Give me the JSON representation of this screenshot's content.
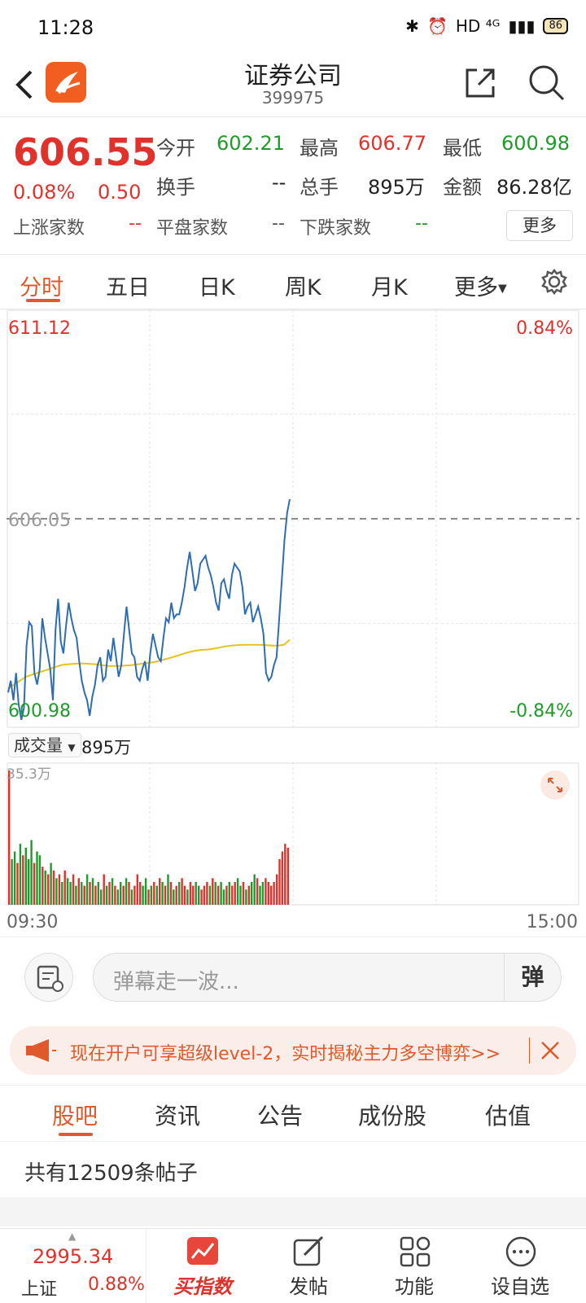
{
  "status": {
    "time": "11:28",
    "network": "HD ⁴ᴳ",
    "battery": "86"
  },
  "header": {
    "title": "证券公司",
    "code": "399975"
  },
  "quote": {
    "price": "606.55",
    "change_pct": "0.08%",
    "change": "0.50",
    "open_label": "今开",
    "open": "602.21",
    "high_label": "最高",
    "high": "606.77",
    "low_label": "最低",
    "low": "600.98",
    "turnover_label": "换手",
    "turnover": "--",
    "volume_label": "总手",
    "volume": "895万",
    "amount_label": "金额",
    "amount": "86.28亿",
    "up_label": "上涨家数",
    "up": "--",
    "flat_label": "平盘家数",
    "flat": "--",
    "down_label": "下跌家数",
    "down": "--",
    "more": "更多"
  },
  "chart_tabs": [
    "分时",
    "五日",
    "日K",
    "周K",
    "月K",
    "更多"
  ],
  "chart_data": {
    "type": "line",
    "y_max": "611.12",
    "y_max_pct": "0.84%",
    "y_min": "600.98",
    "y_min_pct": "-0.84%",
    "prev_close": "606.05",
    "ylim": [
      600.98,
      611.12
    ],
    "x_start": "09:30",
    "x_end": "15:00",
    "price": [
      601.6,
      601.9,
      601.4,
      602.1,
      601.3,
      600.9,
      601.2,
      602.8,
      603.4,
      603.3,
      602.1,
      601.8,
      602.2,
      603.5,
      603.0,
      602.6,
      602.2,
      601.4,
      603.2,
      604.0,
      602.9,
      602.6,
      603.3,
      603.9,
      603.5,
      603.2,
      603.0,
      602.4,
      601.9,
      601.6,
      601.4,
      601.0,
      601.5,
      601.8,
      602.3,
      602.5,
      601.9,
      602.0,
      602.7,
      602.4,
      603.0,
      602.5,
      602.0,
      602.3,
      603.1,
      603.8,
      603.2,
      602.6,
      602.5,
      602.0,
      601.9,
      602.2,
      602.4,
      601.9,
      602.6,
      603.1,
      602.8,
      602.5,
      602.4,
      603.0,
      603.5,
      603.4,
      603.9,
      603.5,
      603.6,
      603.6,
      603.9,
      604.3,
      604.8,
      605.2,
      604.7,
      604.2,
      604.4,
      604.9,
      605.0,
      605.1,
      604.8,
      604.6,
      604.3,
      603.9,
      603.7,
      604.4,
      604.5,
      604.2,
      604.0,
      604.6,
      604.9,
      604.8,
      604.7,
      604.3,
      603.6,
      603.8,
      603.9,
      603.4,
      603.6,
      603.8,
      603.5,
      603.1,
      602.1,
      601.9,
      602.0,
      602.3,
      602.5,
      603.5,
      604.5,
      605.5,
      606.2,
      606.55
    ],
    "avg": [
      601.7,
      601.8,
      601.9,
      602.0,
      602.05,
      602.1,
      602.15,
      602.2,
      602.25,
      602.3,
      602.32,
      602.33,
      602.34,
      602.34,
      602.33,
      602.32,
      602.3,
      602.28,
      602.28,
      602.28,
      602.29,
      602.3,
      602.32,
      602.34,
      602.36,
      602.38,
      602.42,
      602.46,
      602.5,
      602.55,
      602.6,
      602.64,
      602.67,
      602.69,
      602.7,
      602.72,
      602.75,
      602.78,
      602.8,
      602.81,
      602.82,
      602.82,
      602.82,
      602.82,
      602.81,
      602.8,
      602.8,
      602.82,
      602.95
    ],
    "volume_max_label": "35.3万",
    "volume": [
      35.3,
      12,
      14,
      11,
      16,
      13,
      15,
      12,
      17,
      11,
      14,
      13,
      10,
      9,
      8,
      11,
      9,
      7,
      8,
      6,
      9,
      7,
      6,
      8,
      5,
      7,
      6,
      5,
      8,
      6,
      7,
      5,
      6,
      4,
      8,
      5,
      6,
      7,
      5,
      4,
      6,
      5,
      7,
      6,
      4,
      5,
      8,
      6,
      5,
      7,
      4,
      5,
      6,
      5,
      7,
      6,
      5,
      8,
      6,
      4,
      5,
      6,
      7,
      5,
      4,
      6,
      5,
      6,
      5,
      4,
      5,
      6,
      5,
      7,
      6,
      5,
      6,
      4,
      5,
      6,
      5,
      6,
      7,
      5,
      6,
      4,
      5,
      6,
      8,
      7,
      5,
      6,
      7,
      6,
      5,
      6,
      8,
      12,
      14,
      16,
      15
    ],
    "volume_colors": [
      "r",
      "g",
      "g",
      "r",
      "g",
      "r",
      "g",
      "g",
      "g",
      "r",
      "g",
      "g",
      "r",
      "g",
      "r",
      "g",
      "r",
      "g",
      "r",
      "g",
      "r",
      "g",
      "g",
      "r",
      "g",
      "r",
      "g",
      "r",
      "g",
      "r",
      "g",
      "r",
      "g",
      "g",
      "r",
      "g",
      "r",
      "g",
      "r",
      "g",
      "g",
      "r",
      "g",
      "r",
      "g",
      "r",
      "r",
      "r",
      "g",
      "g",
      "r",
      "g",
      "r",
      "g",
      "r",
      "g",
      "r",
      "g",
      "r",
      "g",
      "r",
      "g",
      "r",
      "r",
      "g",
      "r",
      "r",
      "g",
      "g",
      "r",
      "r",
      "r",
      "g",
      "r",
      "g",
      "r",
      "g",
      "g",
      "r",
      "g",
      "r",
      "r",
      "g",
      "g",
      "r",
      "g",
      "r",
      "g",
      "g",
      "r",
      "g",
      "g",
      "r",
      "r",
      "r",
      "r",
      "r",
      "r",
      "r",
      "r",
      "r"
    ]
  },
  "volume_indicator": {
    "label": "成交量",
    "value": "895万"
  },
  "danmaku": {
    "placeholder": "弹幕走一波...",
    "send_label": "弹"
  },
  "promo": {
    "text": "现在开户可享超级level-2，实时揭秘主力多空博弈>>"
  },
  "news_tabs": [
    "股吧",
    "资讯",
    "公告",
    "成份股",
    "估值"
  ],
  "post_count": "共有12509条帖子",
  "bottom_nav": {
    "index_value": "2995.34",
    "index_name": "上证",
    "index_pct": "0.88%",
    "items": [
      "买指数",
      "发帖",
      "功能",
      "设自选"
    ]
  },
  "colors": {
    "up": "#e0322b",
    "down": "#1f9a2b",
    "accent": "#e0592b",
    "price_line": "#2e6db4",
    "avg_line": "#e8c21a"
  }
}
